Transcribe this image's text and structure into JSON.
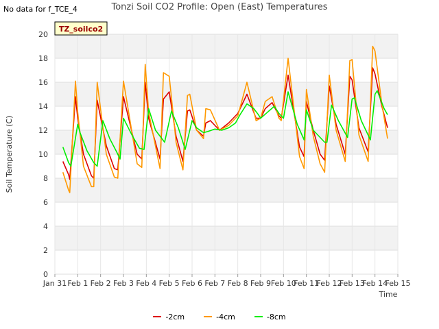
{
  "corner_note": "No data for f_TCE_4",
  "chart_data": {
    "type": "line",
    "title": "Tonzi Soil CO2 Profile: Open (East) Temperatures",
    "xlabel": "Time",
    "ylabel": "Soil Temperature (C)",
    "ylim": [
      0,
      20
    ],
    "yticks": [
      0,
      2,
      4,
      6,
      8,
      10,
      12,
      14,
      16,
      18,
      20
    ],
    "xlim": [
      0,
      15
    ],
    "xtick_labels": [
      "Jan 31",
      "Feb 1",
      "Feb 2",
      "Feb 3",
      "Feb 4",
      "Feb 5",
      "Feb 6",
      "Feb 7",
      "Feb 8",
      "Feb 9",
      "Feb 10",
      "Feb 11",
      "Feb 12",
      "Feb 13",
      "Feb 14",
      "Feb 15"
    ],
    "grid": true,
    "legend_position": "bottom-center",
    "annotation_box": "TZ_soilco2",
    "series": [
      {
        "name": "-2cm",
        "color": "#dd0000",
        "x": [
          0.35,
          0.6,
          0.65,
          0.9,
          1.0,
          1.25,
          1.6,
          1.7,
          1.85,
          2.25,
          2.6,
          2.75,
          3.0,
          3.6,
          3.8,
          3.95,
          4.1,
          4.6,
          4.75,
          5.0,
          5.3,
          5.6,
          5.8,
          5.9,
          6.2,
          6.5,
          6.6,
          6.8,
          7.2,
          7.6,
          8.0,
          8.4,
          8.8,
          9.0,
          9.2,
          9.5,
          9.8,
          9.9,
          10.2,
          10.7,
          10.9,
          11.0,
          11.3,
          11.6,
          11.8,
          12.0,
          12.3,
          12.7,
          12.9,
          13.0,
          13.3,
          13.7,
          13.9,
          14.0,
          14.3,
          14.55
        ],
        "y": [
          9.4,
          8.3,
          7.9,
          14.8,
          13.0,
          10.0,
          8.2,
          8.0,
          14.5,
          10.7,
          8.8,
          8.7,
          14.8,
          10.0,
          9.6,
          16.0,
          13.0,
          9.6,
          14.6,
          15.2,
          11.5,
          9.4,
          13.6,
          13.7,
          12.0,
          11.5,
          12.6,
          12.8,
          12.0,
          12.6,
          13.4,
          15.0,
          13.0,
          13.0,
          13.8,
          14.3,
          13.2,
          13.0,
          16.6,
          10.6,
          9.8,
          14.4,
          12.0,
          10.0,
          9.5,
          15.7,
          12.5,
          10.0,
          16.5,
          16.2,
          12.2,
          10.2,
          17.2,
          16.7,
          14.0,
          12.2
        ]
      },
      {
        "name": "-4cm",
        "color": "#ff9900",
        "x": [
          0.35,
          0.6,
          0.65,
          0.9,
          1.0,
          1.25,
          1.6,
          1.7,
          1.85,
          2.25,
          2.6,
          2.75,
          3.0,
          3.6,
          3.8,
          3.95,
          4.1,
          4.6,
          4.75,
          5.0,
          5.3,
          5.6,
          5.8,
          5.9,
          6.2,
          6.5,
          6.6,
          6.8,
          7.2,
          7.6,
          8.0,
          8.4,
          8.8,
          9.0,
          9.2,
          9.5,
          9.8,
          9.9,
          10.2,
          10.7,
          10.9,
          11.0,
          11.3,
          11.6,
          11.8,
          12.0,
          12.3,
          12.7,
          12.9,
          13.0,
          13.3,
          13.7,
          13.9,
          14.0,
          14.3,
          14.55
        ],
        "y": [
          8.5,
          7.0,
          6.8,
          16.1,
          13.5,
          9.0,
          7.3,
          7.3,
          16.0,
          10.0,
          8.1,
          8.0,
          16.1,
          9.2,
          8.9,
          17.5,
          13.5,
          8.8,
          16.8,
          16.5,
          11.0,
          8.7,
          14.9,
          15.0,
          12.0,
          11.3,
          13.8,
          13.7,
          12.0,
          12.4,
          13.2,
          16.0,
          12.8,
          13.0,
          14.4,
          14.8,
          13.0,
          12.8,
          18.0,
          9.8,
          8.8,
          15.4,
          11.5,
          9.2,
          8.5,
          16.6,
          12.0,
          9.4,
          17.8,
          17.9,
          11.6,
          9.4,
          19.0,
          18.6,
          14.2,
          11.3
        ]
      },
      {
        "name": "-8cm",
        "color": "#00ee00",
        "x": [
          0.35,
          0.6,
          0.7,
          1.0,
          1.1,
          1.4,
          1.7,
          1.85,
          2.1,
          2.4,
          2.7,
          2.85,
          3.0,
          3.4,
          3.7,
          3.9,
          4.1,
          4.4,
          4.8,
          5.1,
          5.4,
          5.7,
          5.9,
          6.0,
          6.2,
          6.5,
          6.7,
          7.0,
          7.3,
          7.6,
          7.9,
          8.1,
          8.4,
          8.7,
          8.9,
          9.0,
          9.3,
          9.6,
          9.8,
          10.0,
          10.2,
          10.6,
          10.9,
          11.0,
          11.3,
          11.8,
          11.9,
          12.1,
          12.4,
          12.8,
          13.0,
          13.1,
          13.4,
          13.8,
          14.0,
          14.1,
          14.4,
          14.55
        ],
        "y": [
          10.6,
          9.3,
          9.0,
          12.5,
          11.8,
          10.3,
          9.3,
          9.0,
          12.8,
          11.3,
          10.2,
          9.6,
          13.0,
          11.5,
          10.5,
          10.4,
          13.8,
          12.0,
          11.0,
          13.6,
          12.2,
          10.4,
          12.0,
          12.8,
          12.2,
          11.8,
          11.9,
          12.1,
          12.0,
          12.2,
          12.6,
          13.3,
          14.2,
          13.8,
          13.3,
          13.0,
          13.5,
          14.0,
          13.4,
          13.0,
          15.2,
          12.5,
          11.2,
          13.7,
          12.0,
          11.0,
          11.0,
          14.1,
          12.8,
          11.4,
          14.6,
          14.7,
          12.8,
          11.2,
          15.0,
          15.3,
          13.8,
          13.3
        ]
      }
    ]
  }
}
